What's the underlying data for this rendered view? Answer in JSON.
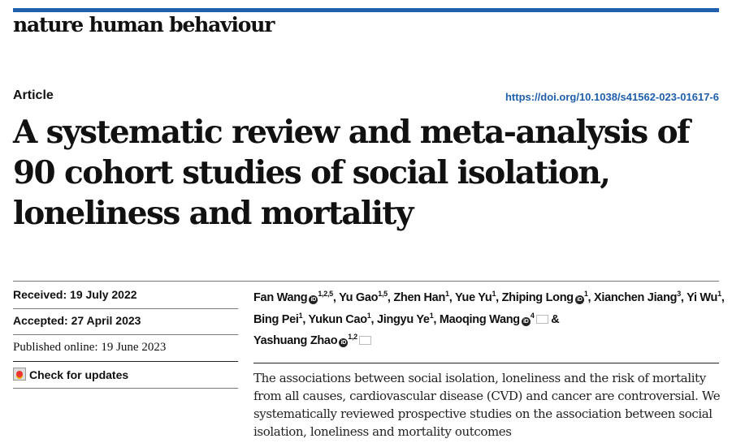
{
  "journal": {
    "name": "nature human behaviour",
    "brand_color": "#1f5fad"
  },
  "article": {
    "type": "Article",
    "doi": "https://doi.org/10.1038/s41562-023-01617-6",
    "title": "A systematic review and meta-analysis of 90 cohort studies of social isolation, loneliness and mortality"
  },
  "dates": {
    "received": "Received: 19 July 2022",
    "accepted": "Accepted: 27 April 2023",
    "published": "Published online: 19 June 2023",
    "check_updates": "Check for updates"
  },
  "authors": [
    {
      "name": "Fan Wang",
      "orcid": true,
      "aff": "1,2,5"
    },
    {
      "name": "Yu Gao",
      "aff": "1,5"
    },
    {
      "name": "Zhen Han",
      "aff": "1"
    },
    {
      "name": "Yue Yu",
      "aff": "1"
    },
    {
      "name": "Zhiping Long",
      "orcid": true,
      "aff": "1"
    },
    {
      "name": "Xianchen Jiang",
      "aff": "3"
    },
    {
      "name": "Yi Wu",
      "aff": "1"
    },
    {
      "name": "Bing Pei",
      "aff": "1"
    },
    {
      "name": "Yukun Cao",
      "aff": "1"
    },
    {
      "name": "Jingyu Ye",
      "aff": "1"
    },
    {
      "name": "Maoqing Wang",
      "orcid": true,
      "aff": "4",
      "mail": true
    },
    {
      "name": "Yashuang Zhao",
      "orcid": true,
      "aff": "1,2",
      "mail": true
    }
  ],
  "abstract": "The associations between social isolation, loneliness and the risk of mortality from all causes, cardiovascular disease (CVD) and cancer are controversial. We systematically reviewed prospective studies on the association between social isolation, loneliness and mortality outcomes"
}
